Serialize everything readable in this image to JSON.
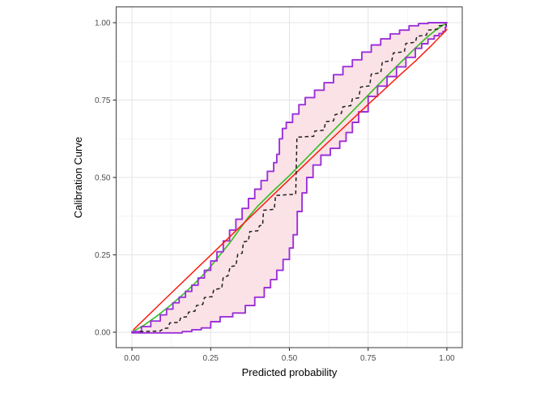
{
  "chart_data": {
    "type": "line",
    "title": "",
    "xlabel": "Predicted probability",
    "ylabel": "Calibration Curve",
    "xlim": [
      -0.05,
      1.05
    ],
    "ylim": [
      -0.05,
      1.05
    ],
    "grid": "on",
    "legend": "none",
    "xticks": [
      0,
      0.25,
      0.5,
      0.75,
      1.0
    ],
    "xtick_labels": [
      "0.00",
      "0.25",
      "0.50",
      "0.75",
      "1.00"
    ],
    "yticks": [
      0,
      0.25,
      0.5,
      0.75,
      1.0
    ],
    "ytick_labels": [
      "0.00",
      "0.25",
      "0.50",
      "0.75",
      "1.00"
    ],
    "colors": {
      "reference_line": "#f91d10",
      "fit_line": "#3cbe2b",
      "band_border": "#9b30d9",
      "band_fill": "#fbe2e7",
      "empirical_line": "#1f1f1f",
      "grid_major": "#e5e5e5",
      "grid_minor": "#f3f3f3",
      "panel_border": "#4d4d4d",
      "tick_label": "#4d4d4d",
      "axis_title": "#000000"
    },
    "band": {
      "name": "confidence-band",
      "stepped": true,
      "upper": [
        [
          0,
          0.002
        ],
        [
          0.03,
          0.018
        ],
        [
          0.06,
          0.036
        ],
        [
          0.09,
          0.056
        ],
        [
          0.11,
          0.075
        ],
        [
          0.13,
          0.095
        ],
        [
          0.15,
          0.113
        ],
        [
          0.17,
          0.132
        ],
        [
          0.19,
          0.152
        ],
        [
          0.21,
          0.175
        ],
        [
          0.23,
          0.2
        ],
        [
          0.25,
          0.23
        ],
        [
          0.27,
          0.26
        ],
        [
          0.29,
          0.295
        ],
        [
          0.31,
          0.33
        ],
        [
          0.33,
          0.365
        ],
        [
          0.35,
          0.4
        ],
        [
          0.37,
          0.432
        ],
        [
          0.39,
          0.462
        ],
        [
          0.41,
          0.49
        ],
        [
          0.43,
          0.52
        ],
        [
          0.45,
          0.548
        ],
        [
          0.46,
          0.575
        ],
        [
          0.468,
          0.625
        ],
        [
          0.478,
          0.658
        ],
        [
          0.49,
          0.678
        ],
        [
          0.51,
          0.705
        ],
        [
          0.53,
          0.735
        ],
        [
          0.55,
          0.758
        ],
        [
          0.58,
          0.782
        ],
        [
          0.61,
          0.806
        ],
        [
          0.64,
          0.832
        ],
        [
          0.67,
          0.858
        ],
        [
          0.7,
          0.88
        ],
        [
          0.73,
          0.905
        ],
        [
          0.76,
          0.928
        ],
        [
          0.79,
          0.948
        ],
        [
          0.82,
          0.964
        ],
        [
          0.85,
          0.976
        ],
        [
          0.88,
          0.99
        ],
        [
          0.91,
          0.997
        ],
        [
          0.94,
          1.0
        ],
        [
          1.0,
          1.0
        ]
      ],
      "lower": [
        [
          0,
          -0.002
        ],
        [
          0.12,
          -0.002
        ],
        [
          0.16,
          0.002
        ],
        [
          0.19,
          0.008
        ],
        [
          0.22,
          0.014
        ],
        [
          0.25,
          0.034
        ],
        [
          0.28,
          0.05
        ],
        [
          0.32,
          0.062
        ],
        [
          0.36,
          0.086
        ],
        [
          0.39,
          0.113
        ],
        [
          0.42,
          0.144
        ],
        [
          0.44,
          0.17
        ],
        [
          0.46,
          0.2
        ],
        [
          0.48,
          0.235
        ],
        [
          0.5,
          0.272
        ],
        [
          0.512,
          0.315
        ],
        [
          0.525,
          0.39
        ],
        [
          0.54,
          0.45
        ],
        [
          0.555,
          0.5
        ],
        [
          0.575,
          0.54
        ],
        [
          0.6,
          0.572
        ],
        [
          0.63,
          0.594
        ],
        [
          0.66,
          0.617
        ],
        [
          0.68,
          0.645
        ],
        [
          0.7,
          0.678
        ],
        [
          0.72,
          0.712
        ],
        [
          0.75,
          0.762
        ],
        [
          0.78,
          0.795
        ],
        [
          0.81,
          0.826
        ],
        [
          0.84,
          0.857
        ],
        [
          0.87,
          0.888
        ],
        [
          0.9,
          0.917
        ],
        [
          0.92,
          0.932
        ],
        [
          0.94,
          0.947
        ],
        [
          0.96,
          0.958
        ],
        [
          0.975,
          0.965
        ],
        [
          0.988,
          0.972
        ],
        [
          0.995,
          0.985
        ],
        [
          0.998,
          1.0
        ]
      ]
    },
    "series": [
      {
        "name": "fit-line-green",
        "style": "solid",
        "stepped": false,
        "points": [
          [
            0,
            0
          ],
          [
            0.04,
            0.024
          ],
          [
            0.08,
            0.053
          ],
          [
            0.12,
            0.085
          ],
          [
            0.16,
            0.12
          ],
          [
            0.2,
            0.158
          ],
          [
            0.24,
            0.2
          ],
          [
            0.28,
            0.25
          ],
          [
            0.31,
            0.288
          ],
          [
            0.34,
            0.33
          ],
          [
            0.37,
            0.372
          ],
          [
            0.4,
            0.408
          ],
          [
            0.45,
            0.458
          ],
          [
            0.5,
            0.506
          ],
          [
            0.55,
            0.558
          ],
          [
            0.6,
            0.61
          ],
          [
            0.65,
            0.662
          ],
          [
            0.7,
            0.714
          ],
          [
            0.75,
            0.766
          ],
          [
            0.8,
            0.818
          ],
          [
            0.85,
            0.868
          ],
          [
            0.9,
            0.918
          ],
          [
            0.94,
            0.956
          ],
          [
            0.97,
            0.98
          ],
          [
            1.0,
            1.0
          ]
        ]
      },
      {
        "name": "reference-line-red",
        "style": "solid",
        "stepped": false,
        "points": [
          [
            0.005,
            0.008
          ],
          [
            0.1,
            0.102
          ],
          [
            0.2,
            0.2
          ],
          [
            0.3,
            0.298
          ],
          [
            0.4,
            0.396
          ],
          [
            0.5,
            0.494
          ],
          [
            0.55,
            0.543
          ],
          [
            0.6,
            0.592
          ],
          [
            0.65,
            0.64
          ],
          [
            0.7,
            0.688
          ],
          [
            0.75,
            0.736
          ],
          [
            0.8,
            0.783
          ],
          [
            0.85,
            0.83
          ],
          [
            0.9,
            0.876
          ],
          [
            0.95,
            0.925
          ],
          [
            1.0,
            0.978
          ]
        ]
      },
      {
        "name": "empirical-stepped-dashed",
        "style": "dashed",
        "stepped": false,
        "points": [
          [
            0.025,
            0.002
          ],
          [
            0.09,
            0.004
          ],
          [
            0.1,
            0.012
          ],
          [
            0.115,
            0.014
          ],
          [
            0.12,
            0.03
          ],
          [
            0.15,
            0.032
          ],
          [
            0.155,
            0.048
          ],
          [
            0.175,
            0.05
          ],
          [
            0.18,
            0.065
          ],
          [
            0.2,
            0.068
          ],
          [
            0.205,
            0.086
          ],
          [
            0.225,
            0.09
          ],
          [
            0.23,
            0.112
          ],
          [
            0.255,
            0.115
          ],
          [
            0.26,
            0.138
          ],
          [
            0.285,
            0.142
          ],
          [
            0.29,
            0.178
          ],
          [
            0.305,
            0.182
          ],
          [
            0.312,
            0.212
          ],
          [
            0.33,
            0.215
          ],
          [
            0.336,
            0.252
          ],
          [
            0.35,
            0.255
          ],
          [
            0.354,
            0.292
          ],
          [
            0.37,
            0.295
          ],
          [
            0.374,
            0.325
          ],
          [
            0.4,
            0.328
          ],
          [
            0.405,
            0.344
          ],
          [
            0.415,
            0.346
          ],
          [
            0.418,
            0.394
          ],
          [
            0.452,
            0.397
          ],
          [
            0.456,
            0.442
          ],
          [
            0.52,
            0.446
          ],
          [
            0.524,
            0.63
          ],
          [
            0.577,
            0.633
          ],
          [
            0.581,
            0.65
          ],
          [
            0.61,
            0.653
          ],
          [
            0.615,
            0.68
          ],
          [
            0.64,
            0.683
          ],
          [
            0.645,
            0.703
          ],
          [
            0.665,
            0.707
          ],
          [
            0.67,
            0.728
          ],
          [
            0.695,
            0.732
          ],
          [
            0.7,
            0.754
          ],
          [
            0.72,
            0.757
          ],
          [
            0.726,
            0.792
          ],
          [
            0.755,
            0.796
          ],
          [
            0.76,
            0.834
          ],
          [
            0.79,
            0.838
          ],
          [
            0.795,
            0.873
          ],
          [
            0.825,
            0.877
          ],
          [
            0.83,
            0.902
          ],
          [
            0.865,
            0.906
          ],
          [
            0.87,
            0.933
          ],
          [
            0.9,
            0.937
          ],
          [
            0.905,
            0.956
          ],
          [
            0.935,
            0.96
          ],
          [
            0.94,
            0.976
          ],
          [
            0.97,
            0.979
          ],
          [
            0.975,
            0.99
          ],
          [
            1.0,
            0.993
          ]
        ]
      }
    ]
  }
}
